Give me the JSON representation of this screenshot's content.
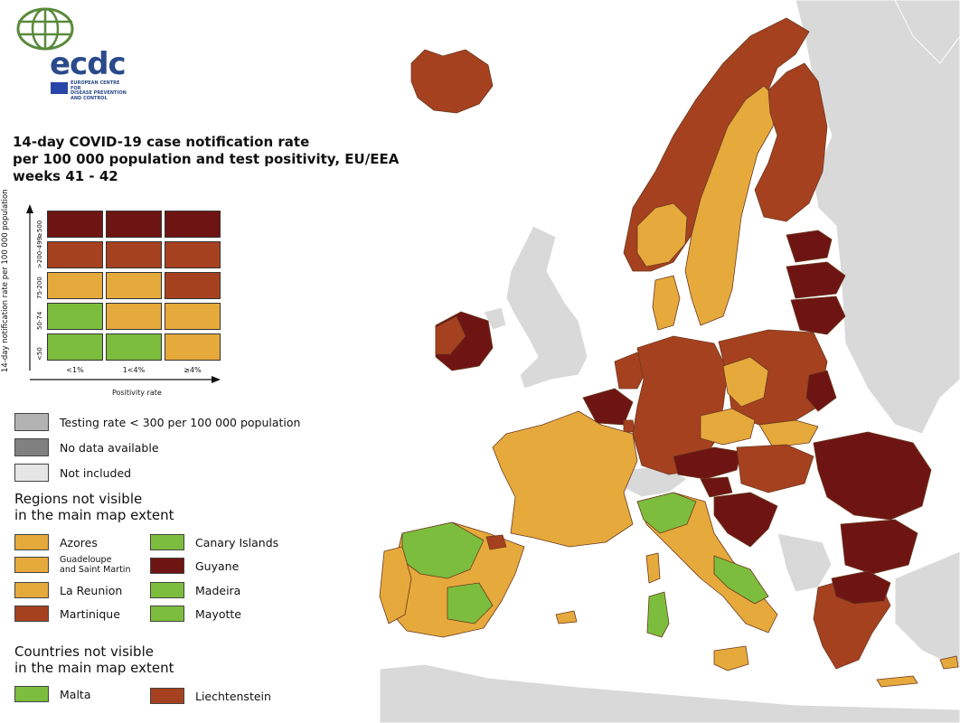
{
  "colors": {
    "sea": "#ffffff",
    "not_included": "#d9d9d9",
    "testing_low": "#b3b3b3",
    "no_data": "#808080",
    "green": "#7cbd3d",
    "orange": "#e6a93c",
    "red": "#a6411f",
    "darkred": "#6e1513"
  },
  "logo": {
    "name": "ecdc",
    "subtitle_lines": [
      "EUROPEAN CENTRE FOR",
      "DISEASE PREVENTION",
      "AND CONTROL"
    ]
  },
  "title_lines": [
    "14-day COVID-19 case notification rate",
    "per 100 000 population and test positivity, EU/EEA",
    "weeks 41 - 42"
  ],
  "grid": {
    "y_axis_title": "14-day notification rate per 100 000 population",
    "x_axis_title": "Positivity rate",
    "rows": [
      "≥500",
      ">200-499",
      "75-200",
      "50-74",
      "<50"
    ],
    "cols": [
      "<1%",
      "1<4%",
      "≥4%"
    ],
    "cells": [
      [
        "darkred",
        "darkred",
        "darkred"
      ],
      [
        "red",
        "red",
        "red"
      ],
      [
        "orange",
        "orange",
        "red"
      ],
      [
        "green",
        "orange",
        "orange"
      ],
      [
        "green",
        "green",
        "orange"
      ]
    ]
  },
  "status_legend": [
    {
      "label": "Testing rate < 300 per 100 000 population",
      "color": "testing_low"
    },
    {
      "label": "No data available",
      "color": "no_data"
    },
    {
      "label": "Not included",
      "color": "not_included"
    }
  ],
  "regions_section": {
    "title_lines": [
      "Regions not visible",
      "in the main map extent"
    ],
    "left": [
      {
        "label": "Azores",
        "color": "orange"
      },
      {
        "label_lines": [
          "Guadeloupe",
          "and Saint Martin"
        ],
        "color": "orange"
      },
      {
        "label": "La Reunion",
        "color": "orange"
      },
      {
        "label": "Martinique",
        "color": "red"
      }
    ],
    "right": [
      {
        "label": "Canary Islands",
        "color": "green"
      },
      {
        "label": "Guyane",
        "color": "darkred"
      },
      {
        "label": "Madeira",
        "color": "green"
      },
      {
        "label": "Mayotte",
        "color": "green"
      }
    ]
  },
  "countries_section": {
    "title_lines": [
      "Countries not visible",
      "in the main map extent"
    ],
    "items": [
      {
        "label": "Malta",
        "color": "green"
      },
      {
        "label": "Liechtenstein",
        "color": "red"
      }
    ]
  }
}
